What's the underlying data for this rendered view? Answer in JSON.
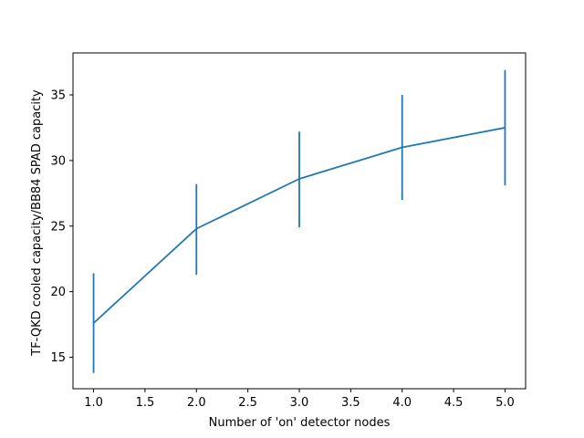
{
  "chart_data": {
    "type": "line",
    "title": "",
    "xlabel": "Number of 'on' detector nodes",
    "ylabel": "TF-QKD cooled capacity/BB84 SPAD capacity",
    "xlim": [
      0.8,
      5.2
    ],
    "ylim": [
      12.6,
      38.2
    ],
    "x_ticks": [
      1.0,
      1.5,
      2.0,
      2.5,
      3.0,
      3.5,
      4.0,
      4.5,
      5.0
    ],
    "x_tick_labels": [
      "1.0",
      "1.5",
      "2.0",
      "2.5",
      "3.0",
      "3.5",
      "4.0",
      "4.5",
      "5.0"
    ],
    "y_ticks": [
      15,
      20,
      25,
      30,
      35
    ],
    "y_tick_labels": [
      "15",
      "20",
      "25",
      "30",
      "35"
    ],
    "grid": false,
    "legend": "none",
    "color": "#1f77b4",
    "series": [
      {
        "x": [
          1,
          2,
          3,
          4,
          5
        ],
        "y": [
          17.6,
          24.8,
          28.6,
          31.0,
          32.5
        ],
        "err_low": [
          13.8,
          21.3,
          24.9,
          27.0,
          28.1
        ],
        "err_high": [
          21.4,
          28.2,
          32.2,
          35.0,
          36.9
        ]
      }
    ]
  }
}
